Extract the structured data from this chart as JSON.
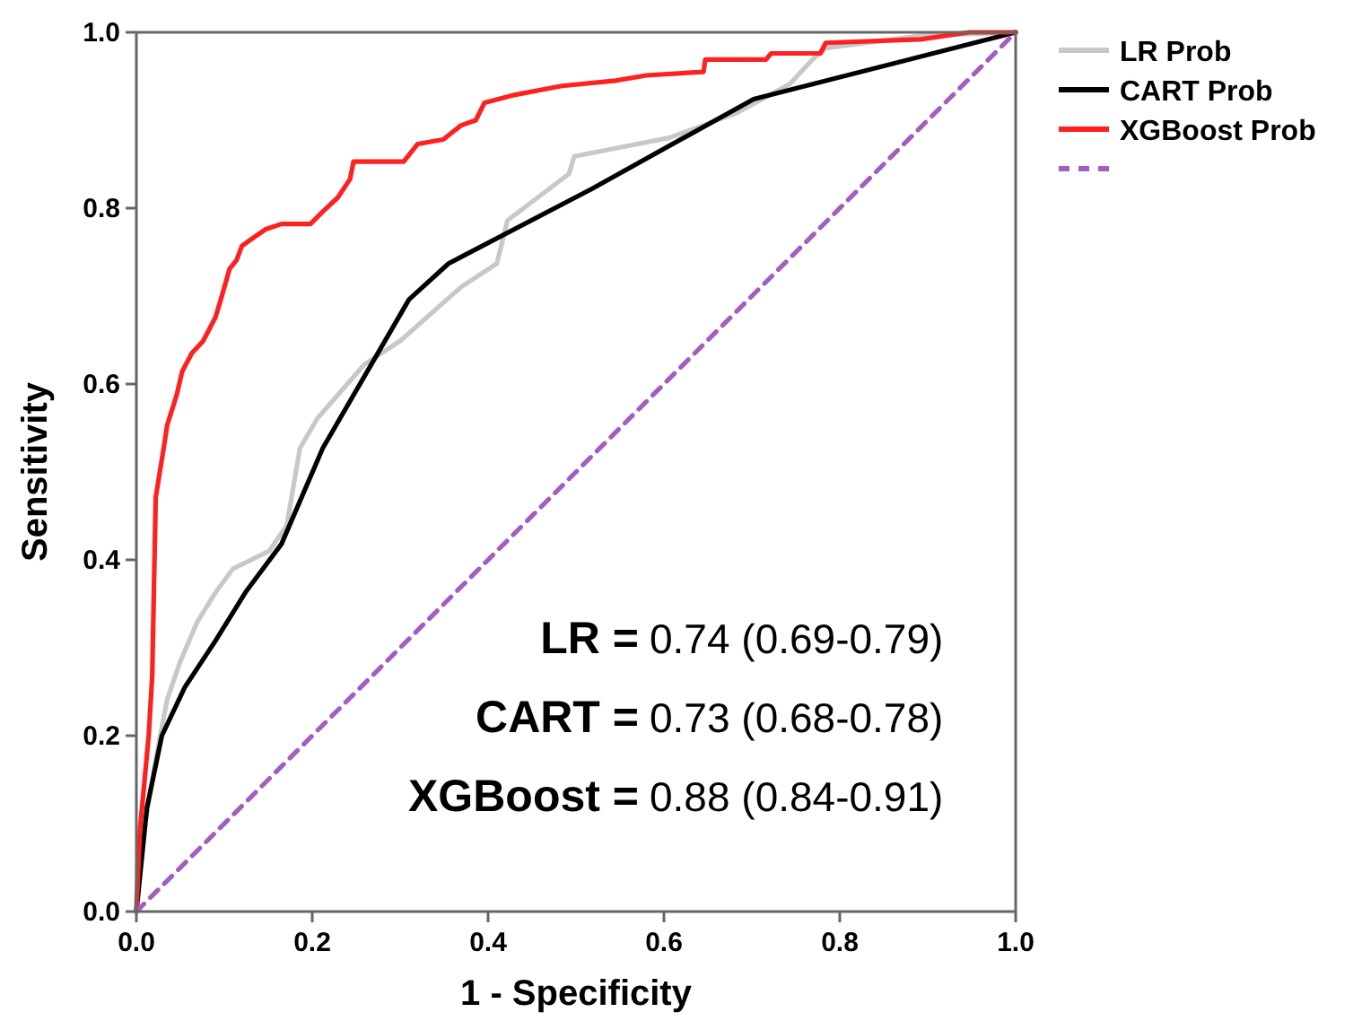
{
  "chart_data": {
    "type": "line",
    "xlabel": "1 - Specificity",
    "ylabel": "Sensitivity",
    "xlim": [
      0,
      1
    ],
    "ylim": [
      0,
      1
    ],
    "xticks": [
      {
        "value": 0,
        "label": "0.0"
      },
      {
        "value": 0.2,
        "label": "0.2"
      },
      {
        "value": 0.4,
        "label": "0.4"
      },
      {
        "value": 0.6,
        "label": "0.6"
      },
      {
        "value": 0.8,
        "label": "0.8"
      },
      {
        "value": 1,
        "label": "1.0"
      }
    ],
    "yticks": [
      {
        "value": 0,
        "label": "0.0"
      },
      {
        "value": 0.2,
        "label": "0.2"
      },
      {
        "value": 0.4,
        "label": "0.4"
      },
      {
        "value": 0.6,
        "label": "0.6"
      },
      {
        "value": 0.8,
        "label": "0.8"
      },
      {
        "value": 1,
        "label": "1.0"
      }
    ],
    "legend": "top right",
    "grid": false,
    "marker": "none",
    "series": [
      {
        "name": "LR Prob",
        "color": "#c8c8c8",
        "x": [
          0,
          0.001,
          0.012,
          0.022,
          0.035,
          0.049,
          0.069,
          0.09,
          0.11,
          0.151,
          0.171,
          0.186,
          0.206,
          0.259,
          0.3,
          0.369,
          0.41,
          0.422,
          0.492,
          0.498,
          0.606,
          0.682,
          0.743,
          0.769,
          0.784,
          0.892,
          1
        ],
        "values": [
          0,
          0.051,
          0.112,
          0.173,
          0.241,
          0.282,
          0.329,
          0.363,
          0.39,
          0.41,
          0.439,
          0.527,
          0.561,
          0.622,
          0.649,
          0.71,
          0.737,
          0.786,
          0.839,
          0.859,
          0.88,
          0.908,
          0.941,
          0.969,
          0.982,
          0.996,
          1
        ]
      },
      {
        "name": "CART Prob",
        "color": "#000000",
        "x": [
          0,
          0.012,
          0.029,
          0.055,
          0.09,
          0.124,
          0.165,
          0.212,
          0.31,
          0.355,
          0.518,
          0.702,
          1
        ],
        "values": [
          0,
          0.118,
          0.2,
          0.255,
          0.308,
          0.363,
          0.418,
          0.527,
          0.696,
          0.737,
          0.822,
          0.924,
          1
        ]
      },
      {
        "name": "XGBoost Prob",
        "color": "#ff2020",
        "x": [
          0,
          0.004,
          0.014,
          0.018,
          0.022,
          0.032,
          0.035,
          0.046,
          0.052,
          0.063,
          0.076,
          0.09,
          0.096,
          0.106,
          0.114,
          0.12,
          0.131,
          0.147,
          0.165,
          0.198,
          0.212,
          0.229,
          0.243,
          0.247,
          0.304,
          0.32,
          0.349,
          0.369,
          0.386,
          0.396,
          0.431,
          0.484,
          0.545,
          0.58,
          0.645,
          0.647,
          0.716,
          0.722,
          0.778,
          0.784,
          0.892,
          0.947,
          1
        ],
        "values": [
          0,
          0.092,
          0.2,
          0.267,
          0.471,
          0.533,
          0.553,
          0.588,
          0.614,
          0.635,
          0.649,
          0.676,
          0.696,
          0.731,
          0.741,
          0.757,
          0.765,
          0.776,
          0.782,
          0.782,
          0.796,
          0.812,
          0.833,
          0.853,
          0.853,
          0.873,
          0.878,
          0.894,
          0.9,
          0.92,
          0.929,
          0.939,
          0.945,
          0.951,
          0.955,
          0.969,
          0.969,
          0.976,
          0.976,
          0.988,
          0.992,
          1,
          1
        ]
      },
      {
        "color": "#a45dc2",
        "line_style": "dashed",
        "x": [
          0,
          1
        ],
        "values": [
          0,
          1
        ]
      }
    ],
    "annotations": [
      "LR = 0.74 (0.69-0.79)",
      "CART = 0.73 (0.68-0.78)",
      "XGBoost = 0.88 (0.84-0.91)"
    ]
  }
}
